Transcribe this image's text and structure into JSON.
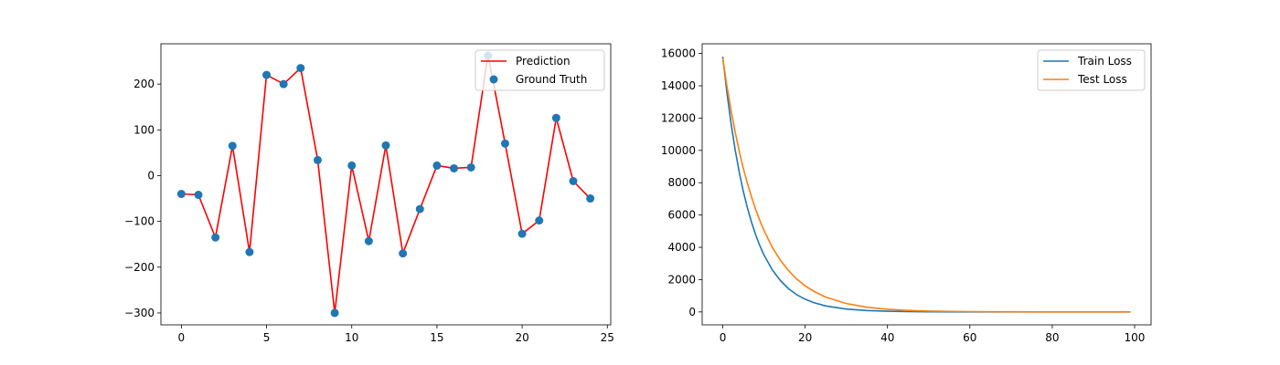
{
  "chart_data": [
    {
      "type": "line",
      "title": "",
      "xlabel": "",
      "ylabel": "",
      "xlim": [
        -1.2,
        25.2
      ],
      "ylim": [
        -326,
        288
      ],
      "xticks": [
        0,
        5,
        10,
        15,
        20,
        25
      ],
      "yticks": [
        -300,
        -200,
        -100,
        0,
        100,
        200
      ],
      "grid": false,
      "legend_position": "top-right",
      "series": [
        {
          "name": "Prediction",
          "kind": "line",
          "color": "#ff0000",
          "x": [
            0,
            1,
            2,
            3,
            4,
            5,
            6,
            7,
            8,
            9,
            10,
            11,
            12,
            13,
            14,
            15,
            16,
            17,
            18,
            19,
            20,
            21,
            22,
            23,
            24
          ],
          "values": [
            -40,
            -42,
            -135,
            65,
            -167,
            220,
            200,
            235,
            34,
            -300,
            22,
            -143,
            66,
            -170,
            -73,
            22,
            16,
            18,
            263,
            70,
            -127,
            -98,
            126,
            -12,
            -50
          ]
        },
        {
          "name": "Ground Truth",
          "kind": "scatter",
          "color": "#1f77b4",
          "x": [
            0,
            1,
            2,
            3,
            4,
            5,
            6,
            7,
            8,
            9,
            10,
            11,
            12,
            13,
            14,
            15,
            16,
            17,
            18,
            19,
            20,
            21,
            22,
            23,
            24
          ],
          "values": [
            -40,
            -42,
            -135,
            65,
            -167,
            220,
            200,
            235,
            34,
            -300,
            22,
            -143,
            66,
            -170,
            -73,
            22,
            16,
            18,
            262,
            70,
            -127,
            -98,
            126,
            -12,
            -50
          ]
        }
      ]
    },
    {
      "type": "line",
      "title": "",
      "xlabel": "",
      "ylabel": "",
      "xlim": [
        -5,
        104
      ],
      "ylim": [
        -800,
        16600
      ],
      "xticks": [
        0,
        20,
        40,
        60,
        80,
        100
      ],
      "yticks": [
        0,
        2000,
        4000,
        6000,
        8000,
        10000,
        12000,
        14000,
        16000
      ],
      "grid": false,
      "legend_position": "top-right",
      "series": [
        {
          "name": "Train Loss",
          "color": "#1f77b4",
          "x": [
            0,
            1,
            2,
            3,
            4,
            5,
            6,
            7,
            8,
            9,
            10,
            12,
            14,
            16,
            18,
            20,
            22,
            25,
            30,
            35,
            40,
            45,
            50,
            60,
            70,
            80,
            90,
            99
          ],
          "values": [
            15800,
            13610,
            11700,
            10070,
            8670,
            7460,
            6420,
            5530,
            4760,
            4100,
            3530,
            2610,
            1940,
            1430,
            1060,
            790,
            585,
            370,
            175,
            85,
            40,
            20,
            10,
            3,
            1,
            0,
            0,
            0
          ]
        },
        {
          "name": "Test Loss",
          "color": "#ff7f0e",
          "x": [
            0,
            1,
            2,
            3,
            4,
            5,
            6,
            7,
            8,
            9,
            10,
            12,
            14,
            16,
            18,
            20,
            22,
            25,
            30,
            35,
            40,
            45,
            50,
            60,
            70,
            80,
            90,
            99
          ],
          "values": [
            15700,
            14010,
            12510,
            11160,
            9960,
            8890,
            7940,
            7090,
            6330,
            5650,
            5040,
            4010,
            3200,
            2550,
            2030,
            1620,
            1290,
            920,
            520,
            290,
            165,
            95,
            55,
            20,
            7,
            3,
            1,
            0
          ]
        }
      ]
    }
  ]
}
